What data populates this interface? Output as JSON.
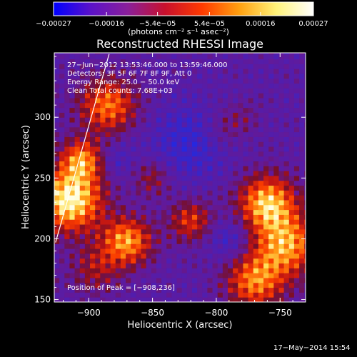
{
  "chart_data": {
    "type": "heatmap",
    "title": "Reconstructed RHESSI Image",
    "xlabel": "Heliocentric X (arcsec)",
    "ylabel": "Heliocentric Y (arcsec)",
    "xlim": [
      -927,
      -730
    ],
    "ylim": [
      148,
      353
    ],
    "xticks": [
      -900,
      -850,
      -800,
      -750
    ],
    "xtick_labels": [
      "−900",
      "−850",
      "−800",
      "−750"
    ],
    "yticks": [
      150,
      200,
      250,
      300
    ],
    "ytick_labels": [
      "150",
      "200",
      "250",
      "300"
    ],
    "colorbar": {
      "range": [
        -0.00027,
        0.00027
      ],
      "tick_values": [
        -0.00027,
        -0.00016,
        -5.4e-05,
        5.4e-05,
        0.00016,
        0.00027
      ],
      "tick_labels": [
        "−0.00027",
        "−0.00016",
        "−5.4e−05",
        "5.4e−05",
        "0.00016",
        "0.00027"
      ],
      "units": "(photons cm⁻² s⁻¹ asec⁻²)",
      "colors": [
        "#0000ff",
        "#5b12c9",
        "#8a1f9a",
        "#c8102d",
        "#ff3a00",
        "#ffa010",
        "#fff37a",
        "#ffffff"
      ]
    },
    "annotations": [
      "27−Jun−2012 13:53:46.000 to 13:59:46.000",
      "Detectors: 3F 5F 6F 7F 8F 9F, Att 0",
      "Energy Range: 25.0 − 50.0 keV",
      "Clean    Total counts: 7.68E+03"
    ],
    "peak_label": "Position of Peak = [−908,236]",
    "limb_line": [
      [
        -926,
        197
      ],
      [
        -884,
        352
      ]
    ]
  },
  "footer": {
    "date": "17−May−2014 15:54"
  }
}
